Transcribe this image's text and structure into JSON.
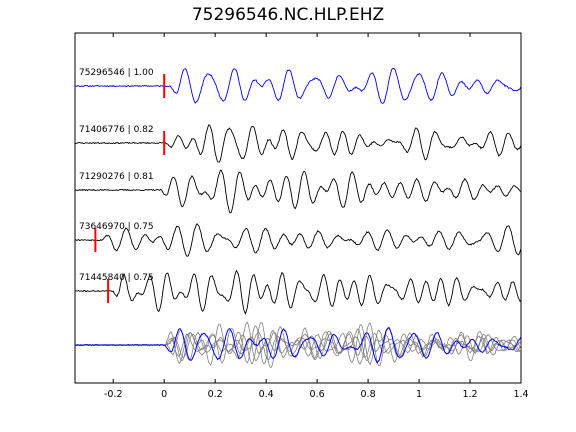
{
  "chart_data": {
    "type": "line",
    "title": "75296546.NC.HLP.EHZ",
    "xlabel": "",
    "ylabel": "",
    "xlim": [
      -0.35,
      1.4
    ],
    "x_ticks": [
      "-0.2",
      "0",
      "0.2",
      "0.4",
      "0.6",
      "0.8",
      "1",
      "1.2",
      "1.4"
    ],
    "x_tick_values": [
      -0.2,
      0,
      0.2,
      0.4,
      0.6,
      0.8,
      1.0,
      1.2,
      1.4
    ],
    "grid": false,
    "colors": {
      "reference": "#0000ff",
      "trace": "#000000",
      "overlay": "#808080",
      "pick": "#ff0000"
    },
    "series": [
      {
        "name": "75296546 | 1.00",
        "event": "75296546",
        "correlation": 1.0,
        "pick_time": 0.0,
        "color": "#0000ff"
      },
      {
        "name": "71406776 | 0.82",
        "event": "71406776",
        "correlation": 0.82,
        "pick_time": 0.0,
        "color": "#000000"
      },
      {
        "name": "71290276 | 0.81",
        "event": "71290276",
        "correlation": 0.81,
        "color": "#000000"
      },
      {
        "name": "73646970 | 0.75",
        "event": "73646970",
        "correlation": 0.75,
        "pick_time": -0.27,
        "color": "#000000"
      },
      {
        "name": "71445840 | 0.75",
        "event": "71445840",
        "correlation": 0.75,
        "pick_time": -0.22,
        "color": "#000000"
      }
    ],
    "stack": {
      "description": "",
      "colors": [
        "#808080",
        "#0000ff"
      ]
    }
  }
}
